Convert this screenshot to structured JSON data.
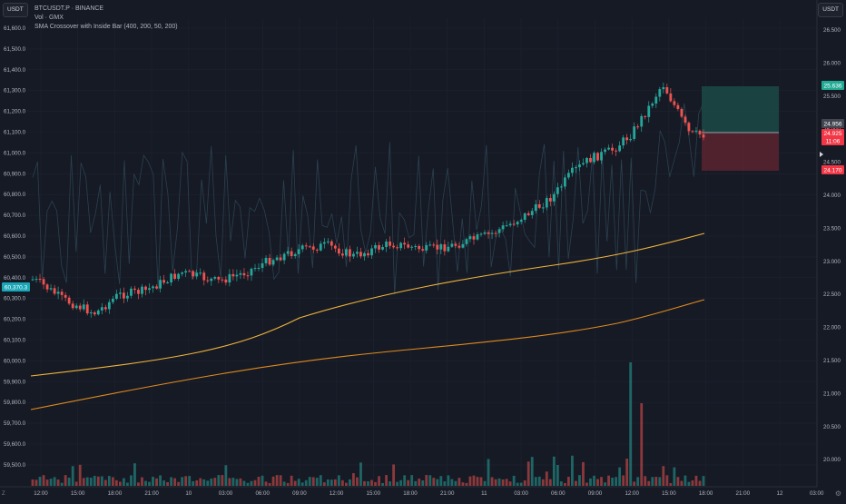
{
  "header": {
    "symbol_line": "BTCUSDT.P · BINANCE",
    "volume_line": "Vol · GMX",
    "indicator_line": "SMA Crossover with Inside Bar (400, 200, 50, 200)"
  },
  "left_currency_button": "USDT",
  "right_currency_button": "USDT",
  "zoom_label": "Z",
  "left_axis": {
    "ticks": [
      "61,600.0",
      "61,500.0",
      "61,400.0",
      "61,300.0",
      "61,200.0",
      "61,100.0",
      "61,000.0",
      "60,900.0",
      "60,800.0",
      "60,700.0",
      "60,600.0",
      "60,500.0",
      "60,400.0",
      "60,300.0",
      "60,200.0",
      "60,100.0",
      "60,000.0",
      "59,900.0",
      "59,800.0",
      "59,700.0",
      "59,600.0",
      "59,500.0"
    ],
    "last_price_badge": "60,370.3"
  },
  "right_axis": {
    "ticks": [
      "26.500",
      "26.000",
      "25.500",
      "25.000",
      "24.500",
      "24.000",
      "23.500",
      "23.000",
      "22.500",
      "22.000",
      "21.500",
      "21.000",
      "20.500",
      "20.000"
    ],
    "badges": {
      "target": "25.636",
      "price_a": "24.956",
      "price_b": "24.925",
      "countdown": "11:06",
      "stop": "24.170"
    }
  },
  "time_axis": [
    "12:00",
    "15:00",
    "18:00",
    "21:00",
    "10",
    "03:00",
    "06:00",
    "09:00",
    "12:00",
    "15:00",
    "18:00",
    "21:00",
    "11",
    "03:00",
    "06:00",
    "09:00",
    "12:00",
    "15:00",
    "18:00",
    "21:00",
    "12",
    "03:00"
  ],
  "colors": {
    "background": "#161a25",
    "up": "#26a69a",
    "down": "#ef5350",
    "sma_fast": "#f0b43c",
    "sma_slow": "#e08a1e",
    "line_overlay": "#2a4150",
    "target_zone": "#1b4a45",
    "stop_zone": "#5a2530",
    "badge_teal": "#22ab94",
    "badge_red": "#f23645",
    "badge_gray": "#434651",
    "badge_cyan": "#1aa6b7"
  },
  "icons": {
    "settings": "gear-icon",
    "price_marker": "triangle-right-icon"
  }
}
